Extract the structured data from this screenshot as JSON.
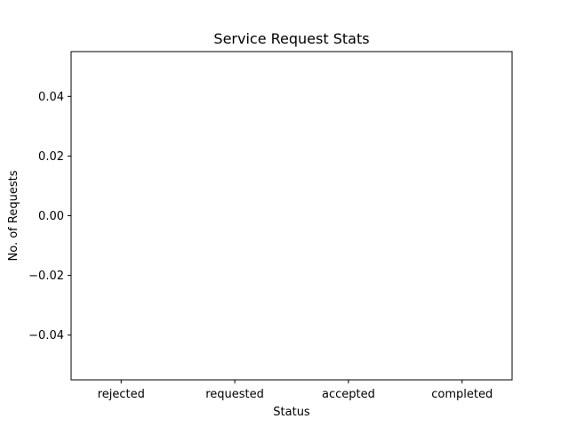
{
  "chart_data": {
    "type": "bar",
    "title": "Service Request Stats",
    "xlabel": "Status",
    "ylabel": "No. of Requests",
    "categories": [
      "rejected",
      "requested",
      "accepted",
      "completed"
    ],
    "values": [
      0,
      0,
      0,
      0
    ],
    "ylim": [
      -0.055,
      0.055
    ],
    "yticks": [
      0.04,
      0.02,
      0.0,
      -0.02,
      -0.04
    ],
    "ytick_labels": [
      "0.04",
      "0.02",
      "0.00",
      "−0.02",
      "−0.04"
    ],
    "grid": false,
    "bar_color": "#1f77b4"
  }
}
